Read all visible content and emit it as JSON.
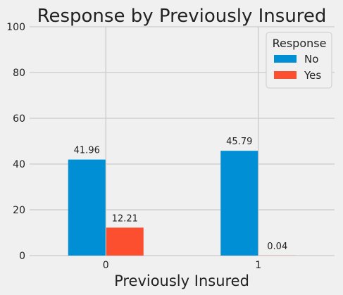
{
  "chart_data": {
    "type": "bar",
    "title": "Response by Previously Insured",
    "xlabel": "Previously Insured",
    "ylabel": "",
    "categories": [
      "0",
      "1"
    ],
    "series": [
      {
        "name": "No",
        "values": [
          41.96,
          45.79
        ],
        "labels": [
          "41.96",
          "45.79"
        ],
        "color": "#008fd5"
      },
      {
        "name": "Yes",
        "values": [
          12.21,
          0.04
        ],
        "labels": [
          "12.21",
          "0.04"
        ],
        "color": "#fc4f30"
      }
    ],
    "ylim": [
      0,
      100
    ],
    "yticks": [
      "0",
      "20",
      "40",
      "60",
      "80",
      "100"
    ],
    "legend": {
      "title": "Response",
      "placement": "top-right"
    },
    "grid": true,
    "background": "#f0f0f0",
    "grid_color": "#cbcbcb"
  }
}
